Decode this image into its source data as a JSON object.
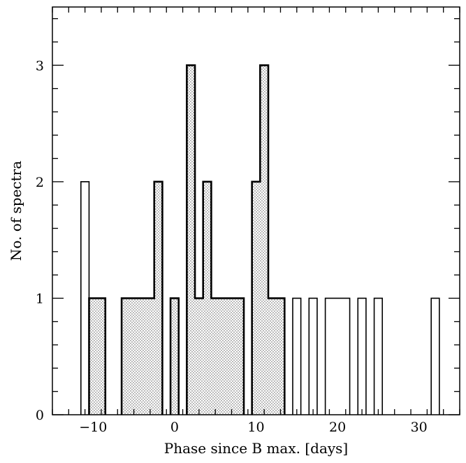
{
  "chart_data": {
    "type": "bar",
    "xlabel": "Phase since B max. [days]",
    "ylabel": "No. of spectra",
    "xlim": [
      -15,
      35
    ],
    "ylim": [
      0,
      3.5
    ],
    "xticks_major": [
      -10,
      0,
      10,
      20,
      30
    ],
    "xtick_labels": [
      "−10",
      "0",
      "10",
      "20",
      "30"
    ],
    "yticks_major": [
      0,
      1,
      2,
      3
    ],
    "ytick_labels": [
      "0",
      "1",
      "2",
      "3"
    ],
    "bin_width": 1,
    "grid": false,
    "series": [
      {
        "style": "open",
        "bins": [
          {
            "x": -11.5,
            "value": 2
          },
          {
            "x": -10.5,
            "value": 1
          },
          {
            "x": -9.5,
            "value": 1
          },
          {
            "x": -6.5,
            "value": 1
          },
          {
            "x": -5.5,
            "value": 1
          },
          {
            "x": -4.5,
            "value": 1
          },
          {
            "x": -3.5,
            "value": 1
          },
          {
            "x": -2.5,
            "value": 2
          },
          {
            "x": -0.5,
            "value": 1
          },
          {
            "x": 1.5,
            "value": 3
          },
          {
            "x": 2.5,
            "value": 1
          },
          {
            "x": 3.5,
            "value": 2
          },
          {
            "x": 4.5,
            "value": 1
          },
          {
            "x": 5.5,
            "value": 1
          },
          {
            "x": 6.5,
            "value": 1
          },
          {
            "x": 7.5,
            "value": 1
          },
          {
            "x": 9.5,
            "value": 2
          },
          {
            "x": 10.5,
            "value": 3
          },
          {
            "x": 11.5,
            "value": 1
          },
          {
            "x": 12.5,
            "value": 1
          },
          {
            "x": 14.5,
            "value": 1
          },
          {
            "x": 16.5,
            "value": 1
          },
          {
            "x": 18.5,
            "value": 1
          },
          {
            "x": 19.5,
            "value": 1
          },
          {
            "x": 20.5,
            "value": 1
          },
          {
            "x": 22.5,
            "value": 1
          },
          {
            "x": 24.5,
            "value": 1
          },
          {
            "x": 31.5,
            "value": 1
          }
        ]
      },
      {
        "style": "dotted",
        "bins": [
          {
            "x": -10.5,
            "value": 1
          },
          {
            "x": -9.5,
            "value": 1
          },
          {
            "x": -6.5,
            "value": 1
          },
          {
            "x": -5.5,
            "value": 1
          },
          {
            "x": -4.5,
            "value": 1
          },
          {
            "x": -3.5,
            "value": 1
          },
          {
            "x": -2.5,
            "value": 2
          },
          {
            "x": -0.5,
            "value": 1
          },
          {
            "x": 1.5,
            "value": 3
          },
          {
            "x": 2.5,
            "value": 1
          },
          {
            "x": 3.5,
            "value": 2
          },
          {
            "x": 4.5,
            "value": 1
          },
          {
            "x": 5.5,
            "value": 1
          },
          {
            "x": 6.5,
            "value": 1
          },
          {
            "x": 7.5,
            "value": 1
          },
          {
            "x": 9.5,
            "value": 2
          },
          {
            "x": 10.5,
            "value": 3
          },
          {
            "x": 11.5,
            "value": 1
          },
          {
            "x": 12.5,
            "value": 1
          }
        ]
      }
    ],
    "colors": {
      "line": "#000000",
      "dots": "#555555",
      "background": "#ffffff"
    }
  }
}
